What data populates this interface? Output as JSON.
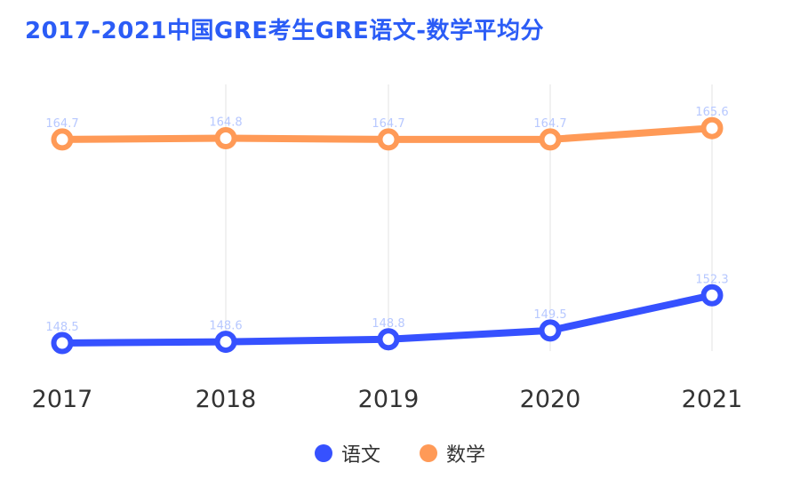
{
  "chart_data": {
    "type": "line",
    "title": "2017-2021中国GRE考生GRE语文-数学平均分",
    "categories": [
      "2017",
      "2018",
      "2019",
      "2020",
      "2021"
    ],
    "series": [
      {
        "name": "语文",
        "values": [
          148.5,
          148.6,
          148.8,
          149.5,
          152.3
        ],
        "color": "#3651ff"
      },
      {
        "name": "数学",
        "values": [
          164.7,
          164.8,
          164.7,
          164.7,
          165.6
        ],
        "color": "#ff9a57"
      }
    ],
    "data_label_color": "#b7c8ff",
    "grid": "vertical",
    "legend": "bottom"
  }
}
